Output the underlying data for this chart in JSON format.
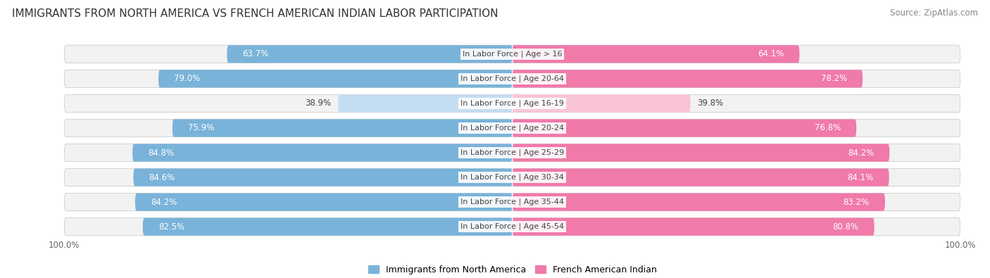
{
  "title": "IMMIGRANTS FROM NORTH AMERICA VS FRENCH AMERICAN INDIAN LABOR PARTICIPATION",
  "source": "Source: ZipAtlas.com",
  "categories": [
    "In Labor Force | Age > 16",
    "In Labor Force | Age 20-64",
    "In Labor Force | Age 16-19",
    "In Labor Force | Age 20-24",
    "In Labor Force | Age 25-29",
    "In Labor Force | Age 30-34",
    "In Labor Force | Age 35-44",
    "In Labor Force | Age 45-54"
  ],
  "left_values": [
    63.7,
    79.0,
    38.9,
    75.9,
    84.8,
    84.6,
    84.2,
    82.5
  ],
  "right_values": [
    64.1,
    78.2,
    39.8,
    76.8,
    84.2,
    84.1,
    83.2,
    80.8
  ],
  "left_color": "#7ab3d9",
  "right_color": "#f07aaa",
  "left_color_light": "#c5ddf0",
  "right_color_light": "#f9c4d8",
  "left_label": "Immigrants from North America",
  "right_label": "French American Indian",
  "background_color": "#ffffff",
  "row_bg_color": "#f2f2f2",
  "bar_height": 0.72,
  "max_value": 100.0,
  "title_fontsize": 11,
  "label_fontsize": 8.5,
  "tick_fontsize": 8.5,
  "source_fontsize": 8.5,
  "light_threshold": 55.0
}
